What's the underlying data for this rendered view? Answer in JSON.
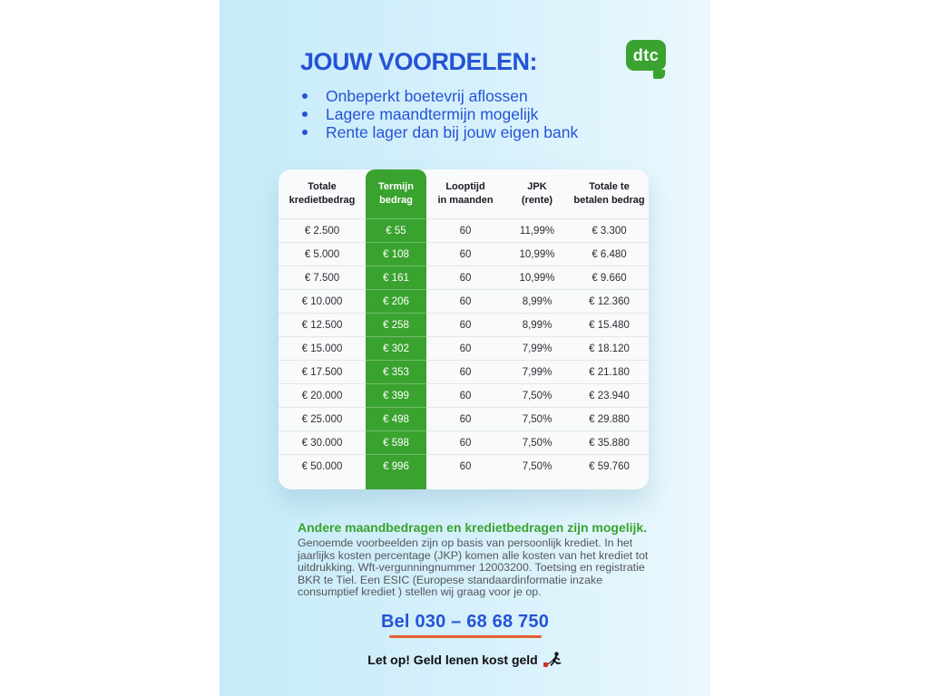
{
  "header": {
    "title": "JOUW VOORDELEN:",
    "bullets": [
      "Onbeperkt boetevrij aflossen",
      "Lagere maandtermijn mogelijk",
      "Rente lager dan bij jouw eigen bank"
    ],
    "logo_text": "dtc"
  },
  "table": {
    "columns": [
      {
        "lines": [
          "Totale",
          "kredietbedrag"
        ],
        "highlight": false
      },
      {
        "lines": [
          "Termijn",
          "bedrag"
        ],
        "highlight": true
      },
      {
        "lines": [
          "Looptijd",
          "in maanden"
        ],
        "highlight": false
      },
      {
        "lines": [
          "JPK",
          "(rente)"
        ],
        "highlight": false
      },
      {
        "lines": [
          "Totale te",
          "betalen bedrag"
        ],
        "highlight": false
      }
    ],
    "rows": [
      [
        "€ 2.500",
        "€ 55",
        "60",
        "11,99%",
        "€ 3.300"
      ],
      [
        "€ 5.000",
        "€ 108",
        "60",
        "10,99%",
        "€ 6.480"
      ],
      [
        "€ 7.500",
        "€ 161",
        "60",
        "10,99%",
        "€ 9.660"
      ],
      [
        "€ 10.000",
        "€ 206",
        "60",
        "8,99%",
        "€ 12.360"
      ],
      [
        "€ 12.500",
        "€ 258",
        "60",
        "8,99%",
        "€ 15.480"
      ],
      [
        "€ 15.000",
        "€ 302",
        "60",
        "7,99%",
        "€ 18.120"
      ],
      [
        "€ 17.500",
        "€ 353",
        "60",
        "7,99%",
        "€ 21.180"
      ],
      [
        "€ 20.000",
        "€ 399",
        "60",
        "7,50%",
        "€ 23.940"
      ],
      [
        "€ 25.000",
        "€ 498",
        "60",
        "7,50%",
        "€ 29.880"
      ],
      [
        "€ 30.000",
        "€ 598",
        "60",
        "7,50%",
        "€ 35.880"
      ],
      [
        "€ 50.000",
        "€ 996",
        "60",
        "7,50%",
        "€ 59.760"
      ]
    ]
  },
  "footer": {
    "heading": "Andere maandbedragen en kredietbedragen zijn mogelijk.",
    "body": "Genoemde voorbeelden zijn op basis van persoonlijk krediet. In het jaarlijks kosten percentage (JKP) komen alle kosten van het krediet tot uitdrukking. Wft-vergunningnummer 12003200. Toetsing en registratie BKR te Tiel. Een ESIC (Europese standaardinformatie inzake consumptief krediet ) stellen wij graag voor je op.",
    "phone": "Bel 030 – 68 68 750",
    "warning": "Let op! Geld lenen kost geld"
  },
  "colors": {
    "accent_blue": "#2553d6",
    "brand_green": "#3aa32f",
    "underline_orange": "#e2612f",
    "warning_red": "#d6301f"
  }
}
